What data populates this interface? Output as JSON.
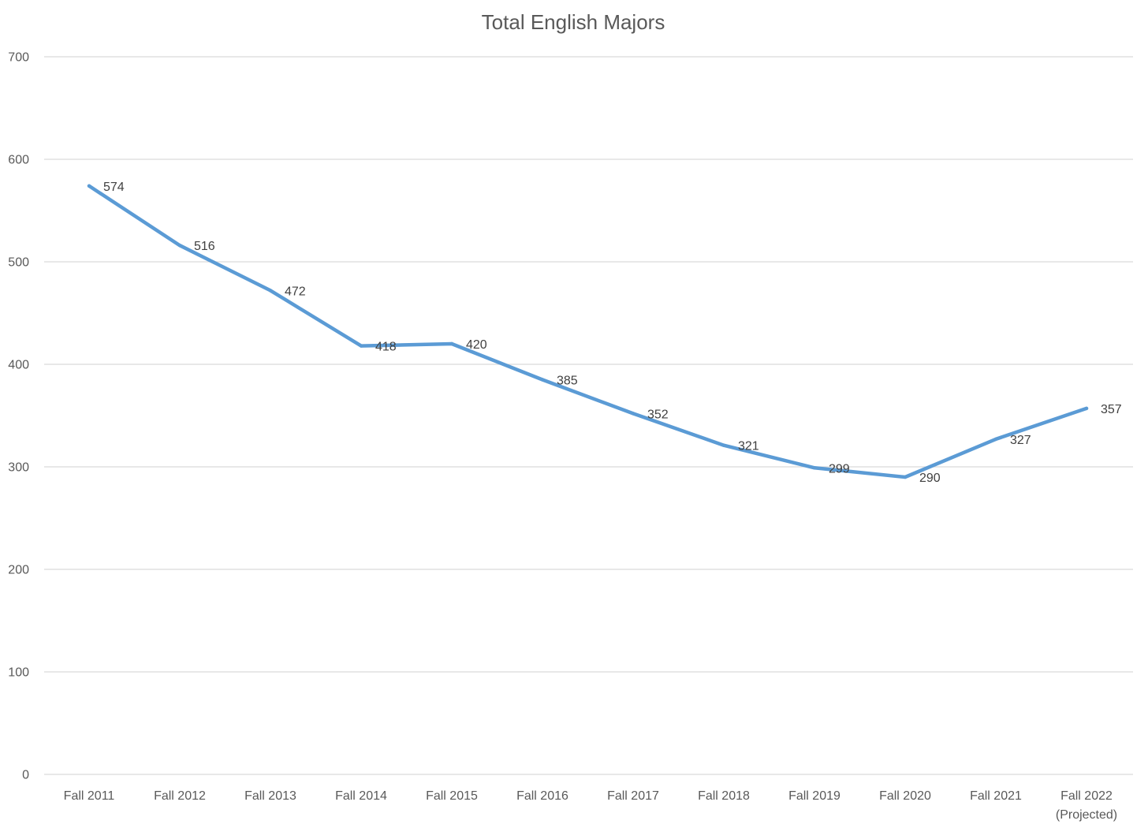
{
  "chart_data": {
    "type": "line",
    "title": "Total English Majors",
    "xlabel": "",
    "ylabel": "",
    "categories": [
      "Fall 2011",
      "Fall 2012",
      "Fall 2013",
      "Fall 2014",
      "Fall 2015",
      "Fall 2016",
      "Fall 2017",
      "Fall 2018",
      "Fall 2019",
      "Fall 2020",
      "Fall 2021",
      "Fall 2022 (Projected)"
    ],
    "series": [
      {
        "values": [
          574,
          516,
          472,
          418,
          420,
          385,
          352,
          321,
          299,
          290,
          327,
          357
        ],
        "color": "#5b9bd5"
      }
    ],
    "ylim": [
      0,
      700
    ],
    "yticks": [
      "0",
      "100",
      "200",
      "300",
      "400",
      "500",
      "600",
      "700"
    ],
    "grid": true,
    "legend": "none",
    "data_labels": true
  }
}
